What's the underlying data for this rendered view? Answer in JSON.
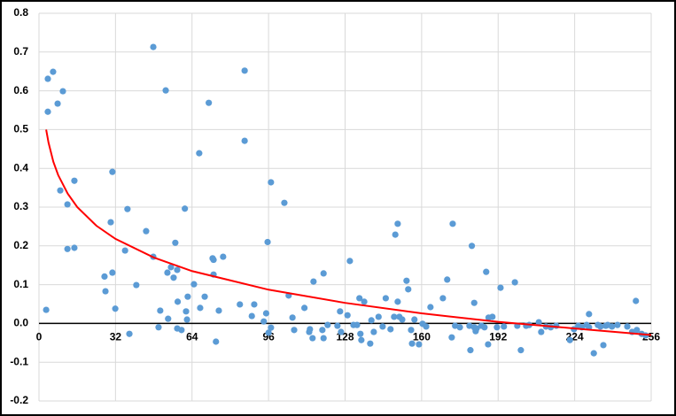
{
  "chart_data": {
    "type": "scatter",
    "xlim": [
      0,
      256
    ],
    "xticks": [
      0,
      32,
      64,
      96,
      128,
      160,
      192,
      224,
      256
    ],
    "ylim": [
      -0.2,
      0.8
    ],
    "yticks": [
      -0.2,
      -0.1,
      {
        "value": 0,
        "label": "0.0"
      },
      0.1,
      0.2,
      0.3,
      0.4,
      0.5,
      0.6,
      0.7,
      0.8
    ],
    "grid": true,
    "series": [
      {
        "color": "#5b9bd5",
        "x": [
          3,
          3.7,
          3.7,
          5.9,
          7.8,
          8.9,
          10,
          11.9,
          11.9,
          14.8,
          14.8,
          27.4,
          27.8,
          30,
          30.7,
          30.7,
          31.9,
          36,
          37,
          37.8,
          40.7,
          44.8,
          47.8,
          47.8,
          50,
          50.7,
          53,
          53.7,
          54,
          55.2,
          56.3,
          57,
          57.8,
          58,
          57.8,
          59.6,
          61,
          61.5,
          61.9,
          62.2,
          64.8,
          67,
          67.4,
          69.3,
          71,
          72.6,
          73,
          73,
          74,
          75.2,
          77,
          84,
          86,
          86,
          89,
          90,
          94,
          95,
          95.6,
          96,
          97,
          97,
          102.6,
          104.4,
          106,
          106.7,
          111,
          113,
          113.3,
          114.8,
          114.4,
          118.5,
          119,
          119,
          120.7,
          124.8,
          125.9,
          126.3,
          129,
          130,
          131.5,
          133,
          134,
          134.4,
          134.8,
          136,
          138.5,
          139,
          140,
          142,
          143.7,
          145,
          147,
          148.5,
          149,
          150,
          150,
          150.7,
          151.9,
          153.7,
          154.4,
          155.6,
          156,
          157,
          158.9,
          160.4,
          161.9,
          163.7,
          168.9,
          170.7,
          172.6,
          173,
          174,
          176,
          180,
          180.4,
          181,
          182,
          182,
          182.6,
          183,
          185,
          186.3,
          187,
          187.8,
          188,
          189.6,
          191.5,
          193,
          194.4,
          199,
          200,
          201.5,
          203.7,
          205,
          209,
          210,
          212,
          214,
          216.3,
          222,
          223.7,
          225.5,
          227,
          229,
          230,
          230,
          232,
          233.7,
          234.8,
          236,
          237,
          237.8,
          239.6,
          241.9,
          246,
          248,
          249.6,
          250,
          252,
          253.7
        ],
        "y": [
          0.035,
          0.546,
          0.631,
          0.649,
          0.567,
          0.343,
          0.599,
          0.307,
          0.192,
          0.195,
          0.368,
          0.121,
          0.083,
          0.261,
          0.391,
          0.131,
          0.038,
          0.188,
          0.295,
          -0.027,
          0.099,
          0.238,
          0.713,
          0.172,
          -0.01,
          0.033,
          0.601,
          0.131,
          0.012,
          0.145,
          0.118,
          0.208,
          0.138,
          0.056,
          -0.013,
          -0.017,
          0.296,
          0.031,
          0.01,
          0.069,
          0.101,
          0.439,
          0.04,
          0.069,
          0.569,
          0.168,
          0.126,
          0.164,
          -0.047,
          0.033,
          0.172,
          0.049,
          0.652,
          0.471,
          0.019,
          0.049,
          0.005,
          0.026,
          0.21,
          -0.024,
          0.364,
          -0.011,
          0.311,
          0.072,
          0.015,
          -0.017,
          0.04,
          -0.022,
          -0.015,
          0.108,
          -0.038,
          -0.017,
          0.129,
          -0.038,
          -0.004,
          -0.006,
          0.031,
          -0.022,
          0.021,
          0.161,
          -0.004,
          -0.004,
          0.065,
          -0.027,
          -0.043,
          0.056,
          -0.052,
          0.008,
          -0.022,
          0.017,
          -0.008,
          0.065,
          -0.015,
          0.017,
          0.229,
          0.257,
          0.056,
          0.017,
          0.01,
          0.11,
          0.088,
          -0.017,
          -0.052,
          0.01,
          -0.054,
          -0.001,
          -0.008,
          0.042,
          0.065,
          0.113,
          -0.036,
          0.257,
          -0.006,
          -0.01,
          -0.006,
          -0.069,
          0.2,
          -0.01,
          0.053,
          -0.02,
          -0.013,
          -0.006,
          -0.01,
          0.133,
          -0.054,
          0.015,
          0.017,
          -0.01,
          0.092,
          -0.008,
          0.106,
          -0.006,
          -0.069,
          -0.006,
          -0.004,
          0.003,
          -0.022,
          -0.008,
          -0.01,
          -0.006,
          -0.043,
          -0.015,
          -0.006,
          -0.01,
          -0.004,
          0.024,
          -0.01,
          -0.077,
          -0.004,
          -0.008,
          -0.056,
          -0.006,
          -0.004,
          -0.008,
          -0.004,
          -0.008,
          -0.022,
          0.058,
          -0.017,
          -0.027,
          -0.031
        ]
      },
      {
        "type": "line",
        "color": "#ff0000",
        "x": [
          3,
          4,
          6,
          8,
          12,
          16,
          24,
          32,
          48,
          64,
          96,
          128,
          160,
          192,
          224,
          256
        ],
        "y": [
          0.5,
          0.466,
          0.417,
          0.383,
          0.335,
          0.3,
          0.252,
          0.218,
          0.17,
          0.135,
          0.087,
          0.053,
          0.026,
          0.004,
          -0.013,
          -0.03
        ]
      }
    ]
  }
}
